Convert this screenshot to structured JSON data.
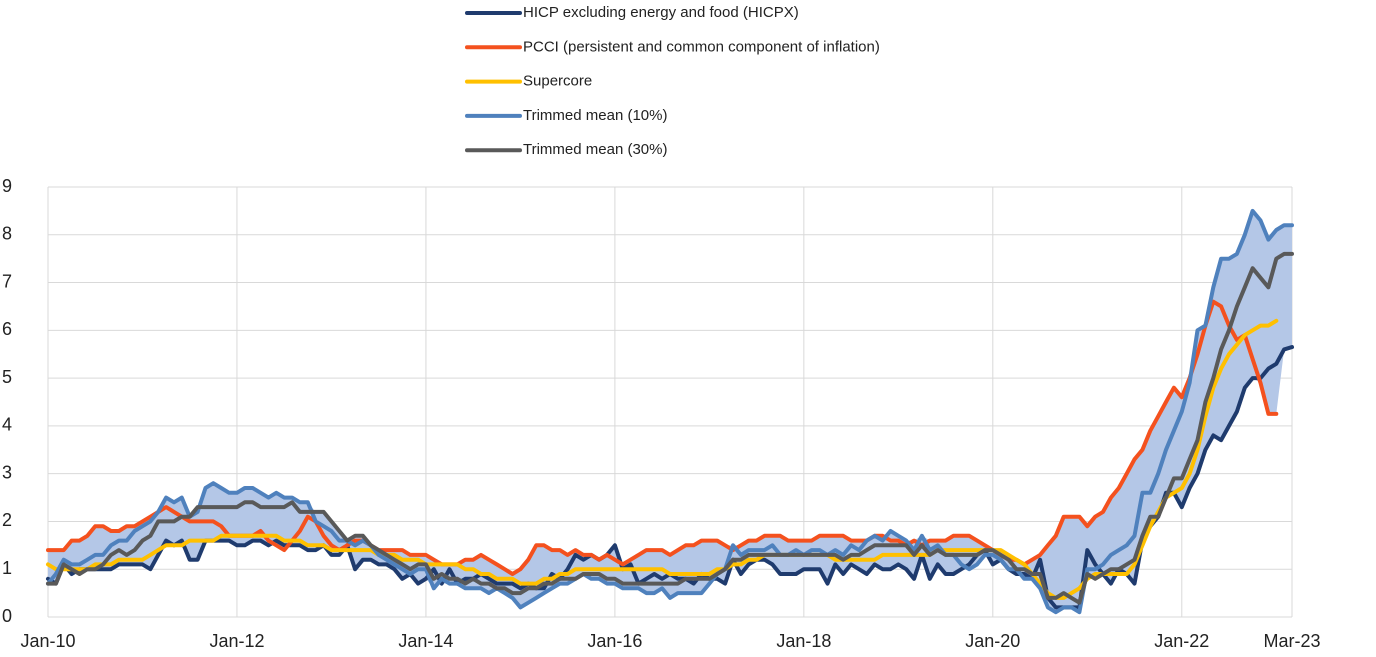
{
  "chart_data": {
    "type": "line",
    "x": [
      "2010-01",
      "2010-02",
      "2010-03",
      "2010-04",
      "2010-05",
      "2010-06",
      "2010-07",
      "2010-08",
      "2010-09",
      "2010-10",
      "2010-11",
      "2010-12",
      "2011-01",
      "2011-02",
      "2011-03",
      "2011-04",
      "2011-05",
      "2011-06",
      "2011-07",
      "2011-08",
      "2011-09",
      "2011-10",
      "2011-11",
      "2011-12",
      "2012-01",
      "2012-02",
      "2012-03",
      "2012-04",
      "2012-05",
      "2012-06",
      "2012-07",
      "2012-08",
      "2012-09",
      "2012-10",
      "2012-11",
      "2012-12",
      "2013-01",
      "2013-02",
      "2013-03",
      "2013-04",
      "2013-05",
      "2013-06",
      "2013-07",
      "2013-08",
      "2013-09",
      "2013-10",
      "2013-11",
      "2013-12",
      "2014-01",
      "2014-02",
      "2014-03",
      "2014-04",
      "2014-05",
      "2014-06",
      "2014-07",
      "2014-08",
      "2014-09",
      "2014-10",
      "2014-11",
      "2014-12",
      "2015-01",
      "2015-02",
      "2015-03",
      "2015-04",
      "2015-05",
      "2015-06",
      "2015-07",
      "2015-08",
      "2015-09",
      "2015-10",
      "2015-11",
      "2015-12",
      "2016-01",
      "2016-02",
      "2016-03",
      "2016-04",
      "2016-05",
      "2016-06",
      "2016-07",
      "2016-08",
      "2016-09",
      "2016-10",
      "2016-11",
      "2016-12",
      "2017-01",
      "2017-02",
      "2017-03",
      "2017-04",
      "2017-05",
      "2017-06",
      "2017-07",
      "2017-08",
      "2017-09",
      "2017-10",
      "2017-11",
      "2017-12",
      "2018-01",
      "2018-02",
      "2018-03",
      "2018-04",
      "2018-05",
      "2018-06",
      "2018-07",
      "2018-08",
      "2018-09",
      "2018-10",
      "2018-11",
      "2018-12",
      "2019-01",
      "2019-02",
      "2019-03",
      "2019-04",
      "2019-05",
      "2019-06",
      "2019-07",
      "2019-08",
      "2019-09",
      "2019-10",
      "2019-11",
      "2019-12",
      "2020-01",
      "2020-02",
      "2020-03",
      "2020-04",
      "2020-05",
      "2020-06",
      "2020-07",
      "2020-08",
      "2020-09",
      "2020-10",
      "2020-11",
      "2020-12",
      "2021-01",
      "2021-02",
      "2021-03",
      "2021-04",
      "2021-05",
      "2021-06",
      "2021-07",
      "2021-08",
      "2021-09",
      "2021-10",
      "2021-11",
      "2021-12",
      "2022-01",
      "2022-02",
      "2022-03",
      "2022-04",
      "2022-05",
      "2022-06",
      "2022-07",
      "2022-08",
      "2022-09",
      "2022-10",
      "2022-11",
      "2022-12",
      "2023-01",
      "2023-02",
      "2023-03"
    ],
    "series": [
      {
        "name": "HICP excluding energy and food (HICPX)",
        "color": "#1f3b6e",
        "values": [
          0.8,
          0.7,
          1.1,
          0.9,
          1.0,
          1.0,
          1.0,
          1.0,
          1.0,
          1.1,
          1.1,
          1.1,
          1.1,
          1.0,
          1.3,
          1.6,
          1.5,
          1.6,
          1.2,
          1.2,
          1.6,
          1.6,
          1.6,
          1.6,
          1.5,
          1.5,
          1.6,
          1.6,
          1.5,
          1.6,
          1.5,
          1.5,
          1.5,
          1.4,
          1.4,
          1.5,
          1.3,
          1.3,
          1.5,
          1.0,
          1.2,
          1.2,
          1.1,
          1.1,
          1.0,
          0.8,
          0.9,
          0.7,
          0.8,
          1.0,
          0.7,
          1.0,
          0.7,
          0.8,
          0.8,
          0.9,
          0.8,
          0.7,
          0.7,
          0.7,
          0.6,
          0.7,
          0.6,
          0.6,
          0.9,
          0.8,
          1.0,
          1.3,
          1.2,
          1.3,
          1.2,
          1.3,
          1.5,
          1.0,
          1.1,
          0.7,
          0.8,
          0.9,
          0.8,
          0.9,
          0.8,
          0.8,
          0.7,
          0.9,
          0.8,
          0.8,
          0.7,
          1.2,
          0.9,
          1.1,
          1.2,
          1.2,
          1.1,
          0.9,
          0.9,
          0.9,
          1.0,
          1.0,
          1.0,
          0.7,
          1.1,
          0.9,
          1.1,
          1.0,
          0.9,
          1.1,
          1.0,
          1.0,
          1.1,
          1.0,
          0.8,
          1.3,
          0.8,
          1.1,
          0.9,
          0.9,
          1.0,
          1.1,
          1.3,
          1.4,
          1.1,
          1.2,
          1.0,
          0.9,
          0.9,
          0.8,
          1.2,
          0.4,
          0.2,
          0.2,
          0.2,
          0.2,
          1.4,
          1.1,
          0.9,
          0.7,
          1.0,
          0.9,
          0.7,
          1.6,
          1.9,
          2.1,
          2.6,
          2.6,
          2.3,
          2.7,
          3.0,
          3.5,
          3.8,
          3.7,
          4.0,
          4.3,
          4.8,
          5.0,
          5.0,
          5.2,
          5.3,
          5.6,
          5.65
        ]
      },
      {
        "name": "PCCI (persistent and common component of inflation)",
        "color": "#f4511e",
        "values": [
          1.4,
          1.4,
          1.4,
          1.6,
          1.6,
          1.7,
          1.9,
          1.9,
          1.8,
          1.8,
          1.9,
          1.9,
          2.0,
          2.1,
          2.2,
          2.3,
          2.2,
          2.1,
          2.0,
          2.0,
          2.0,
          2.0,
          1.9,
          1.7,
          1.7,
          1.7,
          1.7,
          1.8,
          1.6,
          1.5,
          1.4,
          1.6,
          1.8,
          2.1,
          2.0,
          1.7,
          1.5,
          1.4,
          1.5,
          1.6,
          1.6,
          1.5,
          1.4,
          1.4,
          1.4,
          1.4,
          1.3,
          1.3,
          1.3,
          1.2,
          1.1,
          1.1,
          1.1,
          1.2,
          1.2,
          1.3,
          1.2,
          1.1,
          1.0,
          0.9,
          1.0,
          1.2,
          1.5,
          1.5,
          1.4,
          1.4,
          1.3,
          1.4,
          1.3,
          1.3,
          1.2,
          1.3,
          1.2,
          1.1,
          1.2,
          1.3,
          1.4,
          1.4,
          1.4,
          1.3,
          1.4,
          1.5,
          1.5,
          1.6,
          1.6,
          1.6,
          1.5,
          1.4,
          1.5,
          1.6,
          1.6,
          1.7,
          1.7,
          1.7,
          1.6,
          1.6,
          1.6,
          1.6,
          1.7,
          1.7,
          1.7,
          1.7,
          1.6,
          1.6,
          1.6,
          1.7,
          1.7,
          1.6,
          1.6,
          1.5,
          1.6,
          1.5,
          1.6,
          1.6,
          1.6,
          1.7,
          1.7,
          1.7,
          1.6,
          1.5,
          1.4,
          1.3,
          1.2,
          1.2,
          1.1,
          1.2,
          1.3,
          1.5,
          1.7,
          2.1,
          2.1,
          2.1,
          1.9,
          2.1,
          2.2,
          2.5,
          2.7,
          3.0,
          3.3,
          3.5,
          3.9,
          4.2,
          4.5,
          4.8,
          4.6,
          5.0,
          5.5,
          6.1,
          6.6,
          6.5,
          6.1,
          5.8,
          5.9,
          5.4,
          4.9,
          4.25,
          4.25,
          null,
          null
        ]
      },
      {
        "name": "Supercore",
        "color": "#ffc000",
        "values": [
          1.1,
          1.0,
          1.0,
          1.0,
          1.0,
          1.0,
          1.1,
          1.1,
          1.1,
          1.2,
          1.2,
          1.2,
          1.2,
          1.3,
          1.4,
          1.5,
          1.5,
          1.5,
          1.6,
          1.6,
          1.6,
          1.6,
          1.7,
          1.7,
          1.7,
          1.7,
          1.7,
          1.7,
          1.7,
          1.7,
          1.6,
          1.6,
          1.6,
          1.5,
          1.5,
          1.5,
          1.4,
          1.4,
          1.4,
          1.4,
          1.4,
          1.4,
          1.3,
          1.3,
          1.3,
          1.2,
          1.2,
          1.2,
          1.1,
          1.1,
          1.1,
          1.1,
          1.1,
          1.0,
          1.0,
          0.9,
          0.9,
          0.8,
          0.8,
          0.8,
          0.7,
          0.7,
          0.7,
          0.8,
          0.8,
          0.9,
          0.9,
          1.0,
          1.0,
          1.0,
          1.0,
          1.0,
          1.0,
          1.0,
          1.0,
          1.0,
          1.0,
          1.0,
          1.0,
          0.9,
          0.9,
          0.9,
          0.9,
          0.9,
          0.9,
          1.0,
          1.0,
          1.1,
          1.1,
          1.2,
          1.2,
          1.3,
          1.3,
          1.3,
          1.3,
          1.3,
          1.3,
          1.3,
          1.3,
          1.3,
          1.2,
          1.2,
          1.2,
          1.2,
          1.2,
          1.2,
          1.3,
          1.3,
          1.3,
          1.3,
          1.3,
          1.3,
          1.3,
          1.4,
          1.4,
          1.4,
          1.4,
          1.4,
          1.4,
          1.4,
          1.4,
          1.4,
          1.3,
          1.2,
          1.1,
          0.9,
          0.7,
          0.5,
          0.4,
          0.4,
          0.5,
          0.6,
          0.8,
          0.9,
          0.9,
          0.9,
          0.9,
          0.9,
          1.1,
          1.5,
          1.9,
          2.2,
          2.5,
          2.6,
          2.7,
          3.0,
          3.5,
          4.2,
          4.8,
          5.2,
          5.5,
          5.7,
          5.9,
          6.0,
          6.1,
          6.1,
          6.2,
          null,
          null
        ]
      },
      {
        "name": "Trimmed mean (10%)",
        "color": "#4f81bd",
        "values": [
          0.7,
          0.9,
          1.2,
          1.1,
          1.1,
          1.2,
          1.3,
          1.3,
          1.5,
          1.6,
          1.6,
          1.8,
          1.9,
          2.0,
          2.2,
          2.5,
          2.4,
          2.5,
          2.1,
          2.2,
          2.7,
          2.8,
          2.7,
          2.6,
          2.6,
          2.7,
          2.7,
          2.6,
          2.5,
          2.6,
          2.5,
          2.5,
          2.4,
          2.4,
          2.0,
          1.9,
          1.8,
          1.6,
          1.6,
          1.5,
          1.6,
          1.5,
          1.3,
          1.2,
          1.1,
          1.0,
          0.9,
          1.0,
          1.0,
          0.6,
          0.8,
          0.7,
          0.7,
          0.6,
          0.6,
          0.6,
          0.5,
          0.6,
          0.5,
          0.4,
          0.2,
          0.3,
          0.4,
          0.5,
          0.6,
          0.7,
          0.7,
          0.8,
          0.9,
          0.8,
          0.8,
          0.7,
          0.7,
          0.6,
          0.6,
          0.6,
          0.5,
          0.5,
          0.6,
          0.4,
          0.5,
          0.5,
          0.5,
          0.5,
          0.7,
          0.9,
          1.0,
          1.5,
          1.3,
          1.4,
          1.4,
          1.4,
          1.5,
          1.3,
          1.3,
          1.4,
          1.3,
          1.4,
          1.4,
          1.3,
          1.4,
          1.3,
          1.5,
          1.4,
          1.6,
          1.7,
          1.6,
          1.8,
          1.7,
          1.6,
          1.4,
          1.7,
          1.4,
          1.5,
          1.3,
          1.3,
          1.1,
          1.0,
          1.1,
          1.3,
          1.3,
          1.2,
          1.0,
          1.0,
          0.8,
          0.8,
          0.6,
          0.2,
          0.1,
          0.2,
          0.2,
          0.1,
          1.0,
          1.0,
          1.1,
          1.3,
          1.4,
          1.5,
          1.7,
          2.6,
          2.6,
          3.0,
          3.5,
          3.9,
          4.3,
          4.9,
          6.0,
          6.1,
          6.9,
          7.5,
          7.5,
          7.6,
          8.0,
          8.5,
          8.3,
          7.9,
          8.1,
          8.2,
          8.2
        ]
      },
      {
        "name": "Trimmed mean (30%)",
        "color": "#595959",
        "values": [
          0.7,
          0.7,
          1.1,
          1.0,
          0.9,
          1.0,
          1.0,
          1.1,
          1.3,
          1.4,
          1.3,
          1.4,
          1.6,
          1.7,
          2.0,
          2.0,
          2.0,
          2.1,
          2.1,
          2.3,
          2.3,
          2.3,
          2.3,
          2.3,
          2.3,
          2.4,
          2.4,
          2.3,
          2.3,
          2.3,
          2.3,
          2.4,
          2.2,
          2.2,
          2.2,
          2.2,
          2.0,
          1.8,
          1.6,
          1.7,
          1.7,
          1.5,
          1.4,
          1.3,
          1.2,
          1.1,
          1.0,
          1.1,
          1.1,
          0.8,
          0.9,
          0.8,
          0.8,
          0.7,
          0.8,
          0.7,
          0.7,
          0.6,
          0.6,
          0.5,
          0.5,
          0.6,
          0.6,
          0.7,
          0.7,
          0.8,
          0.8,
          0.8,
          0.9,
          0.9,
          0.9,
          0.8,
          0.8,
          0.7,
          0.7,
          0.7,
          0.7,
          0.7,
          0.7,
          0.7,
          0.7,
          0.8,
          0.8,
          0.8,
          0.8,
          0.9,
          1.0,
          1.2,
          1.2,
          1.3,
          1.3,
          1.3,
          1.3,
          1.3,
          1.3,
          1.3,
          1.3,
          1.3,
          1.3,
          1.3,
          1.3,
          1.2,
          1.3,
          1.3,
          1.4,
          1.5,
          1.5,
          1.5,
          1.5,
          1.5,
          1.3,
          1.5,
          1.3,
          1.4,
          1.3,
          1.3,
          1.3,
          1.3,
          1.3,
          1.4,
          1.4,
          1.3,
          1.2,
          1.0,
          1.0,
          0.9,
          0.9,
          0.4,
          0.4,
          0.5,
          0.4,
          0.3,
          0.9,
          0.8,
          0.9,
          1.0,
          1.0,
          1.1,
          1.2,
          1.7,
          2.1,
          2.1,
          2.5,
          2.9,
          2.9,
          3.3,
          3.7,
          4.5,
          5.0,
          5.6,
          6.0,
          6.5,
          6.9,
          7.3,
          7.1,
          6.9,
          7.5,
          7.6,
          7.6
        ]
      }
    ],
    "band_color": "#b4c7e7",
    "xlim": [
      "2010-01",
      "2023-03"
    ],
    "xticks": [
      {
        "value": "2010-01",
        "label": "Jan-10"
      },
      {
        "value": "2012-01",
        "label": "Jan-12"
      },
      {
        "value": "2014-01",
        "label": "Jan-14"
      },
      {
        "value": "2016-01",
        "label": "Jan-16"
      },
      {
        "value": "2018-01",
        "label": "Jan-18"
      },
      {
        "value": "2020-01",
        "label": "Jan-20"
      },
      {
        "value": "2022-01",
        "label": "Jan-22"
      },
      {
        "value": "2023-03",
        "label": "Mar-23"
      }
    ],
    "ylim": [
      0,
      9
    ],
    "yticks": [
      0,
      1,
      2,
      3,
      4,
      5,
      6,
      7,
      8,
      9
    ],
    "grid": true
  }
}
